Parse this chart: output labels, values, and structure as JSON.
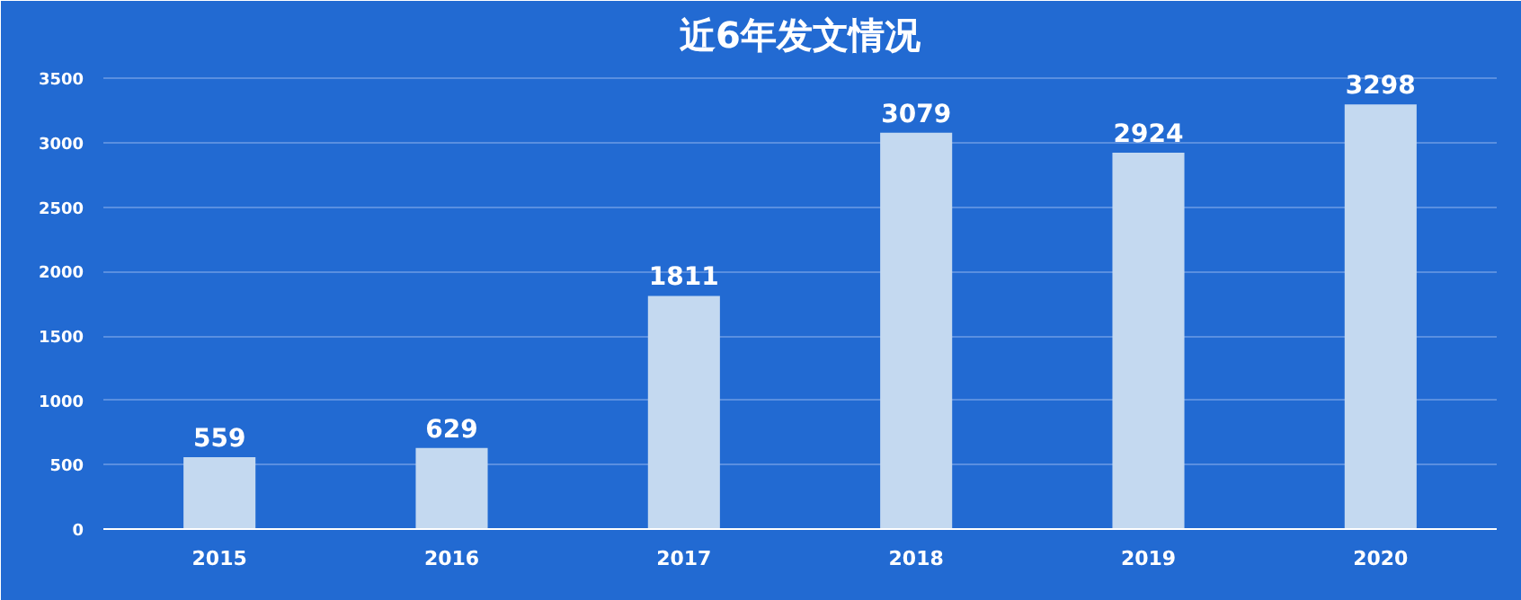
{
  "chart_data": {
    "type": "bar",
    "title": "近6年发文情况",
    "categories": [
      "2015",
      "2016",
      "2017",
      "2018",
      "2019",
      "2020"
    ],
    "values": [
      559,
      629,
      1811,
      3079,
      2924,
      3298
    ],
    "color": "#c4d9f0",
    "ylim": [
      0,
      3600
    ],
    "yticks": [
      0,
      500,
      1000,
      1500,
      2000,
      2500,
      3000,
      3500
    ],
    "grid": "y",
    "data_labels": true
  }
}
